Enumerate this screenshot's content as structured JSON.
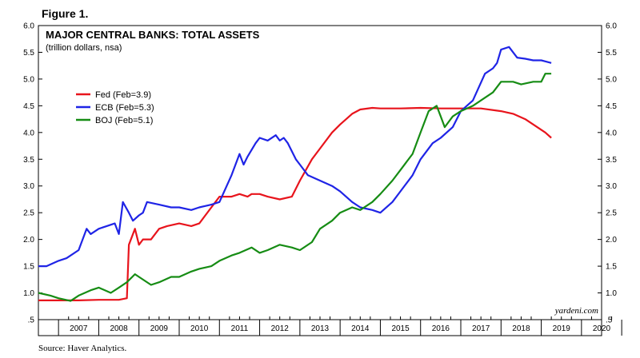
{
  "figure_label": "Figure 1.",
  "source": "Source: Haver Analytics.",
  "watermark": "yardeni.com",
  "chart_data": {
    "type": "line",
    "title": "MAJOR CENTRAL BANKS: TOTAL ASSETS",
    "subtitle": "(trillion dollars, nsa)",
    "xlabel": "",
    "ylabel": "",
    "xlim": [
      2006.5,
      2020.5
    ],
    "ylim": [
      0.5,
      6.0
    ],
    "y_ticks": [
      ".5",
      "1.0",
      "1.5",
      "2.0",
      "2.5",
      "3.0",
      "3.5",
      "4.0",
      "4.5",
      "5.0",
      "5.5",
      "6.0"
    ],
    "x_tick_labels": [
      "2007",
      "2008",
      "2009",
      "2010",
      "2011",
      "2012",
      "2013",
      "2014",
      "2015",
      "2016",
      "2017",
      "2018",
      "2019",
      "2020"
    ],
    "legend_position": "upper-left",
    "grid": false,
    "series": [
      {
        "name": "Fed (Feb=3.9)",
        "color": "#e8141c",
        "x": [
          2006.5,
          2007.0,
          2007.5,
          2008.0,
          2008.5,
          2008.7,
          2008.75,
          2008.9,
          2009.0,
          2009.1,
          2009.3,
          2009.5,
          2009.7,
          2010.0,
          2010.3,
          2010.5,
          2010.8,
          2011.0,
          2011.3,
          2011.5,
          2011.7,
          2011.8,
          2012.0,
          2012.2,
          2012.5,
          2012.8,
          2013.0,
          2013.3,
          2013.5,
          2013.8,
          2014.0,
          2014.3,
          2014.5,
          2014.8,
          2015.0,
          2015.5,
          2016.0,
          2016.5,
          2017.0,
          2017.5,
          2018.0,
          2018.3,
          2018.6,
          2018.9,
          2019.1,
          2019.25
        ],
        "y": [
          0.86,
          0.86,
          0.86,
          0.87,
          0.87,
          0.9,
          1.9,
          2.2,
          1.9,
          2.0,
          2.0,
          2.2,
          2.25,
          2.3,
          2.25,
          2.3,
          2.6,
          2.8,
          2.8,
          2.85,
          2.8,
          2.85,
          2.85,
          2.8,
          2.75,
          2.8,
          3.1,
          3.5,
          3.7,
          4.0,
          4.15,
          4.35,
          4.43,
          4.46,
          4.45,
          4.45,
          4.46,
          4.45,
          4.45,
          4.45,
          4.4,
          4.35,
          4.25,
          4.1,
          4.0,
          3.9
        ]
      },
      {
        "name": "ECB (Feb=5.3)",
        "color": "#1f24e6",
        "x": [
          2006.5,
          2006.7,
          2007.0,
          2007.2,
          2007.5,
          2007.7,
          2007.8,
          2008.0,
          2008.2,
          2008.4,
          2008.5,
          2008.6,
          2008.75,
          2008.85,
          2009.0,
          2009.1,
          2009.2,
          2009.5,
          2009.8,
          2010.0,
          2010.3,
          2010.5,
          2010.8,
          2011.0,
          2011.3,
          2011.5,
          2011.6,
          2011.7,
          2011.9,
          2012.0,
          2012.2,
          2012.4,
          2012.5,
          2012.6,
          2012.7,
          2012.9,
          2013.0,
          2013.2,
          2013.5,
          2013.8,
          2014.0,
          2014.3,
          2014.5,
          2014.8,
          2015.0,
          2015.3,
          2015.5,
          2015.8,
          2016.0,
          2016.3,
          2016.5,
          2016.8,
          2017.0,
          2017.3,
          2017.6,
          2017.8,
          2017.9,
          2018.0,
          2018.2,
          2018.4,
          2018.6,
          2018.8,
          2019.0,
          2019.1,
          2019.25
        ],
        "y": [
          1.5,
          1.5,
          1.6,
          1.65,
          1.8,
          2.2,
          2.1,
          2.2,
          2.25,
          2.3,
          2.1,
          2.7,
          2.5,
          2.35,
          2.45,
          2.5,
          2.7,
          2.65,
          2.6,
          2.6,
          2.55,
          2.6,
          2.65,
          2.7,
          3.2,
          3.6,
          3.4,
          3.55,
          3.8,
          3.9,
          3.85,
          3.95,
          3.85,
          3.9,
          3.8,
          3.5,
          3.4,
          3.2,
          3.1,
          3.0,
          2.9,
          2.7,
          2.6,
          2.55,
          2.5,
          2.7,
          2.9,
          3.2,
          3.5,
          3.8,
          3.9,
          4.1,
          4.4,
          4.6,
          5.1,
          5.2,
          5.3,
          5.55,
          5.6,
          5.4,
          5.38,
          5.35,
          5.35,
          5.33,
          5.3
        ]
      },
      {
        "name": "BOJ (Feb=5.1)",
        "color": "#168c14",
        "x": [
          2006.5,
          2006.8,
          2007.0,
          2007.3,
          2007.5,
          2007.8,
          2008.0,
          2008.3,
          2008.5,
          2008.7,
          2008.9,
          2009.0,
          2009.3,
          2009.5,
          2009.8,
          2010.0,
          2010.3,
          2010.5,
          2010.8,
          2011.0,
          2011.3,
          2011.5,
          2011.8,
          2012.0,
          2012.2,
          2012.5,
          2012.8,
          2013.0,
          2013.3,
          2013.5,
          2013.8,
          2014.0,
          2014.3,
          2014.5,
          2014.8,
          2015.0,
          2015.3,
          2015.5,
          2015.8,
          2016.0,
          2016.2,
          2016.4,
          2016.5,
          2016.6,
          2016.8,
          2017.0,
          2017.3,
          2017.5,
          2017.8,
          2018.0,
          2018.3,
          2018.5,
          2018.8,
          2019.0,
          2019.1,
          2019.25
        ],
        "y": [
          1.0,
          0.95,
          0.9,
          0.85,
          0.95,
          1.05,
          1.1,
          1.0,
          1.1,
          1.2,
          1.35,
          1.3,
          1.15,
          1.2,
          1.3,
          1.3,
          1.4,
          1.45,
          1.5,
          1.6,
          1.7,
          1.75,
          1.85,
          1.75,
          1.8,
          1.9,
          1.85,
          1.8,
          1.95,
          2.2,
          2.35,
          2.5,
          2.6,
          2.55,
          2.7,
          2.85,
          3.1,
          3.3,
          3.6,
          4.0,
          4.4,
          4.5,
          4.3,
          4.1,
          4.3,
          4.4,
          4.5,
          4.6,
          4.75,
          4.95,
          4.95,
          4.9,
          4.95,
          4.95,
          5.1,
          5.1
        ]
      }
    ]
  }
}
